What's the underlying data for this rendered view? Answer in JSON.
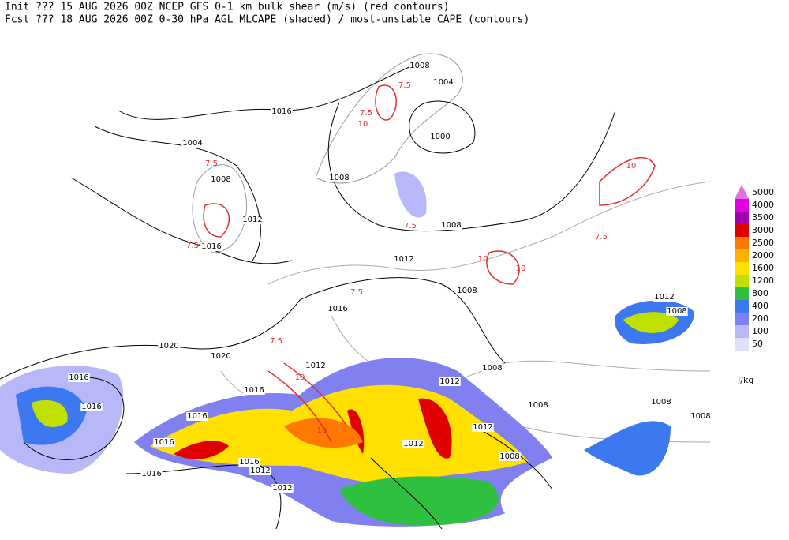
{
  "header": {
    "line1": "Init  ??? 15 AUG 2026 00Z  NCEP GFS 0-1 km bulk shear (m/s) (red contours)",
    "line2": "Fcst ??? 18 AUG 2026 00Z  0-30 hPa AGL MLCAPE (shaded) / most-unstable CAPE (contours)"
  },
  "legend": {
    "unit": "J/kg",
    "levels": [
      {
        "label": "5000",
        "color": "#e070e0"
      },
      {
        "label": "4000",
        "color": "#e000e0"
      },
      {
        "label": "3500",
        "color": "#a000b0"
      },
      {
        "label": "3000",
        "color": "#e00000"
      },
      {
        "label": "2500",
        "color": "#ff7800"
      },
      {
        "label": "2000",
        "color": "#ffb000"
      },
      {
        "label": "1600",
        "color": "#ffe000"
      },
      {
        "label": "1200",
        "color": "#c0e000"
      },
      {
        "label": "800",
        "color": "#30c040"
      },
      {
        "label": "400",
        "color": "#3c78f0"
      },
      {
        "label": "200",
        "color": "#8080f0"
      },
      {
        "label": "100",
        "color": "#b8b8f8"
      },
      {
        "label": "50",
        "color": "#e0e0fc"
      }
    ]
  },
  "isobar_labels": [
    "1008",
    "1004",
    "1016",
    "1004",
    "1000",
    "1008",
    "1008",
    "1012",
    "1008",
    "1016",
    "1012",
    "1008",
    "1016",
    "1012",
    "1008",
    "1020",
    "1020",
    "1012",
    "1008",
    "1016",
    "1012",
    "1016",
    "1016",
    "1016",
    "1008",
    "1008",
    "1008",
    "1012",
    "1016",
    "1012",
    "1008",
    "1016",
    "1016",
    "1012",
    "1012"
  ],
  "shear_labels": [
    "7.5",
    "10",
    "7.5",
    "7.5",
    "10",
    "7.5",
    "10",
    "7.5",
    "7.5",
    "10",
    "7.5",
    "10",
    "7.5",
    "10"
  ]
}
